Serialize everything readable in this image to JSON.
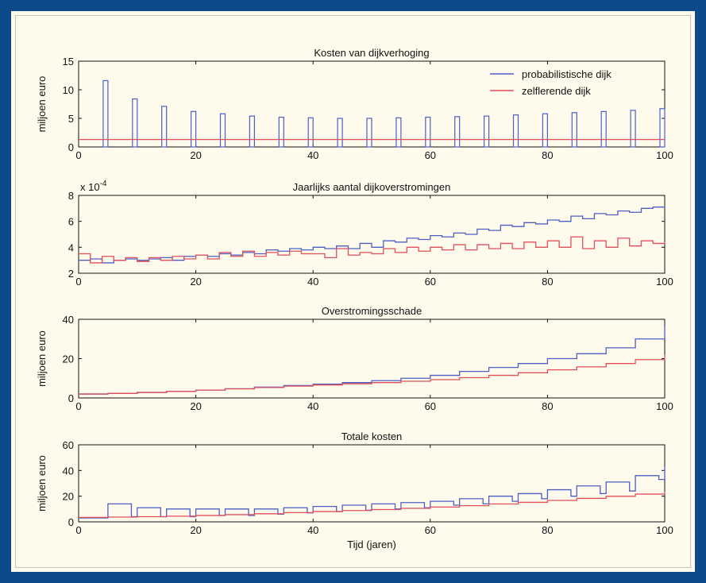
{
  "colors": {
    "probabilistic": "#4d5fc4",
    "self_learning": "#e0505a",
    "background": "#fefaec",
    "border": "#0d4a8c"
  },
  "chart_data": [
    {
      "type": "bar",
      "title": "Kosten van dijkverhoging",
      "ylabel": "miljoen euro",
      "xlabel": "",
      "xlim": [
        0,
        100
      ],
      "ylim": [
        0,
        15
      ],
      "xticks": [
        "0",
        "20",
        "40",
        "60",
        "80",
        "100"
      ],
      "yticks": [
        "0",
        "5",
        "10",
        "15"
      ],
      "legend": {
        "position": "top-right",
        "entries": [
          "probabilistische dijk",
          "zelflerende dijk"
        ]
      },
      "series": [
        {
          "name": "probabilistische dijk",
          "type": "bar",
          "x": [
            5,
            10,
            15,
            20,
            25,
            30,
            35,
            40,
            45,
            50,
            55,
            60,
            65,
            70,
            75,
            80,
            85,
            90,
            95,
            100
          ],
          "values": [
            11.6,
            8.4,
            7.1,
            6.2,
            5.8,
            5.4,
            5.2,
            5.1,
            5.0,
            5.0,
            5.1,
            5.2,
            5.3,
            5.4,
            5.6,
            5.8,
            6.0,
            6.2,
            6.4,
            6.7
          ]
        },
        {
          "name": "zelflerende dijk",
          "type": "line",
          "x": [
            0,
            100
          ],
          "values": [
            1.3,
            1.3
          ]
        }
      ]
    },
    {
      "type": "line",
      "title": "Jaarlijks aantal dijkoverstromingen",
      "ylabel": "",
      "xlabel": "",
      "multiplier": "x 10",
      "exponent": "-4",
      "xlim": [
        0,
        100
      ],
      "ylim": [
        2,
        8
      ],
      "xticks": [
        "0",
        "20",
        "40",
        "60",
        "80",
        "100"
      ],
      "yticks": [
        "2",
        "4",
        "6",
        "8"
      ],
      "series": [
        {
          "name": "probabilistische dijk",
          "step": true,
          "x": [
            0,
            2,
            4,
            6,
            8,
            10,
            12,
            14,
            16,
            18,
            20,
            22,
            24,
            26,
            28,
            30,
            32,
            34,
            36,
            38,
            40,
            42,
            44,
            46,
            48,
            50,
            52,
            54,
            56,
            58,
            60,
            62,
            64,
            66,
            68,
            70,
            72,
            74,
            76,
            78,
            80,
            82,
            84,
            86,
            88,
            90,
            92,
            94,
            96,
            98,
            100
          ],
          "values": [
            3.0,
            3.1,
            2.8,
            3.0,
            3.1,
            3.0,
            3.1,
            3.2,
            3.0,
            3.3,
            3.4,
            3.3,
            3.5,
            3.4,
            3.6,
            3.5,
            3.8,
            3.7,
            3.9,
            3.8,
            4.0,
            3.9,
            4.1,
            3.9,
            4.3,
            4.0,
            4.5,
            4.4,
            4.7,
            4.6,
            4.9,
            4.8,
            5.1,
            5.0,
            5.4,
            5.3,
            5.7,
            5.6,
            5.9,
            5.8,
            6.1,
            6.0,
            6.4,
            6.2,
            6.6,
            6.5,
            6.8,
            6.7,
            7.0,
            7.1,
            7.2
          ]
        },
        {
          "name": "zelflerende dijk",
          "step": true,
          "x": [
            0,
            2,
            4,
            6,
            8,
            10,
            12,
            14,
            16,
            18,
            20,
            22,
            24,
            26,
            28,
            30,
            32,
            34,
            36,
            38,
            40,
            42,
            44,
            46,
            48,
            50,
            52,
            54,
            56,
            58,
            60,
            62,
            64,
            66,
            68,
            70,
            72,
            74,
            76,
            78,
            80,
            82,
            84,
            86,
            88,
            90,
            92,
            94,
            96,
            98,
            100
          ],
          "values": [
            3.5,
            2.8,
            3.3,
            3.0,
            3.2,
            2.9,
            3.2,
            3.0,
            3.3,
            3.1,
            3.4,
            3.1,
            3.6,
            3.3,
            3.7,
            3.3,
            3.6,
            3.4,
            3.7,
            3.5,
            3.5,
            3.2,
            3.9,
            3.4,
            3.6,
            3.5,
            3.9,
            3.6,
            4.0,
            3.7,
            4.0,
            3.8,
            4.2,
            3.8,
            4.2,
            3.9,
            4.3,
            3.9,
            4.4,
            4.0,
            4.5,
            4.0,
            4.8,
            3.9,
            4.5,
            4.0,
            4.7,
            4.1,
            4.5,
            4.3,
            4.4
          ]
        }
      ]
    },
    {
      "type": "line",
      "title": "Overstromingsschade",
      "ylabel": "miljoen euro",
      "xlabel": "",
      "xlim": [
        0,
        100
      ],
      "ylim": [
        0,
        40
      ],
      "xticks": [
        "0",
        "20",
        "40",
        "60",
        "80",
        "100"
      ],
      "yticks": [
        "0",
        "20",
        "40"
      ],
      "series": [
        {
          "name": "probabilistische dijk",
          "step": true,
          "x": [
            0,
            5,
            10,
            15,
            20,
            25,
            30,
            35,
            40,
            45,
            50,
            55,
            60,
            65,
            70,
            75,
            80,
            85,
            90,
            95,
            100
          ],
          "values": [
            2.0,
            2.3,
            2.8,
            3.3,
            4.0,
            4.7,
            5.5,
            6.3,
            7.0,
            7.8,
            8.8,
            10.0,
            11.5,
            13.5,
            15.5,
            17.5,
            20.0,
            22.5,
            25.5,
            30.0,
            37.0
          ]
        },
        {
          "name": "zelflerende dijk",
          "step": true,
          "x": [
            0,
            5,
            10,
            15,
            20,
            25,
            30,
            35,
            40,
            45,
            50,
            55,
            60,
            65,
            70,
            75,
            80,
            85,
            90,
            95,
            100
          ],
          "values": [
            2.0,
            2.3,
            2.8,
            3.3,
            4.0,
            4.6,
            5.3,
            6.0,
            6.6,
            7.2,
            7.8,
            8.5,
            9.3,
            10.3,
            11.5,
            12.8,
            14.3,
            15.8,
            17.5,
            19.5,
            22.0
          ]
        }
      ]
    },
    {
      "type": "line",
      "title": "Totale kosten",
      "ylabel": "miljoen euro",
      "xlabel": "Tijd (jaren)",
      "xlim": [
        0,
        100
      ],
      "ylim": [
        0,
        60
      ],
      "xticks": [
        "0",
        "20",
        "40",
        "60",
        "80",
        "100"
      ],
      "yticks": [
        "0",
        "20",
        "40",
        "60"
      ],
      "series": [
        {
          "name": "probabilistische dijk",
          "step": true,
          "x": [
            0,
            4,
            5,
            9,
            10,
            14,
            15,
            19,
            20,
            24,
            25,
            29,
            30,
            34,
            35,
            39,
            40,
            44,
            45,
            49,
            50,
            54,
            55,
            59,
            60,
            64,
            65,
            69,
            70,
            74,
            75,
            79,
            80,
            84,
            85,
            89,
            90,
            94,
            95,
            99,
            100
          ],
          "values": [
            3,
            3,
            14,
            4,
            11,
            4,
            10,
            4,
            10,
            5,
            10,
            5,
            10,
            6,
            11,
            7,
            12,
            8,
            13,
            9,
            14,
            10,
            15,
            11,
            16,
            13,
            18,
            14,
            20,
            16,
            22,
            18,
            25,
            20,
            28,
            22,
            31,
            24,
            36,
            33,
            43
          ]
        },
        {
          "name": "zelflerende dijk",
          "step": true,
          "x": [
            0,
            5,
            10,
            15,
            20,
            25,
            30,
            35,
            40,
            45,
            50,
            55,
            60,
            65,
            70,
            75,
            80,
            85,
            90,
            95,
            100
          ],
          "values": [
            3.5,
            3.7,
            4.0,
            4.4,
            5.0,
            5.6,
            6.3,
            7.2,
            8.0,
            8.8,
            9.6,
            10.5,
            11.5,
            12.6,
            13.9,
            15.2,
            16.7,
            18.3,
            19.9,
            21.6,
            23.5
          ]
        }
      ]
    }
  ]
}
